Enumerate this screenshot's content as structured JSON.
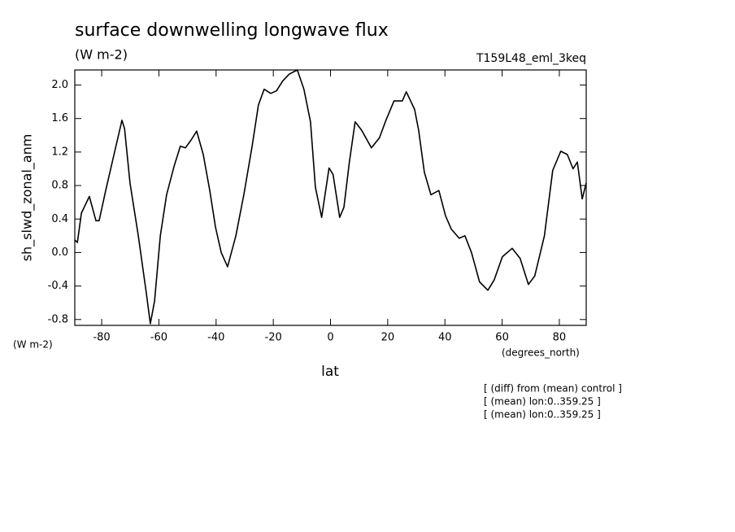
{
  "chart_data": {
    "type": "line",
    "title": "surface downwelling longwave flux",
    "subtitle": "(W m-2)",
    "run_label": "T159L48_eml_3keq",
    "y_label": "sh_slwd_zonal_anm",
    "y_units": "(W m-2)",
    "x_label": "lat",
    "x_units": "(degrees_north)",
    "notes": [
      "[ (diff) from (mean) control ]",
      "[ (mean) lon:0..359.25 ]",
      "[ (mean) lon:0..359.25 ]"
    ],
    "xlim": [
      -89.4,
      89.4
    ],
    "ylim": [
      -0.87,
      2.18
    ],
    "xticks": [
      -80,
      -60,
      -40,
      -20,
      0,
      20,
      40,
      60,
      80
    ],
    "yticks": [
      {
        "value": 2.0,
        "label": "2.0"
      },
      1.6,
      1.2,
      0.8,
      0.4,
      {
        "value": 0.0,
        "label": "0.0"
      },
      -0.4,
      -0.8
    ],
    "series": [
      {
        "color": "#000000",
        "x": [
          -89.4,
          -88.5,
          -87.1,
          -84.3,
          -82.0,
          -80.9,
          -78.6,
          -75.7,
          -72.9,
          -72.0,
          -70.1,
          -67.2,
          -64.4,
          -63.0,
          -61.5,
          -59.5,
          -57.3,
          -54.7,
          -52.5,
          -50.7,
          -48.8,
          -46.8,
          -44.5,
          -42.2,
          -40.2,
          -38.2,
          -36.0,
          -33.1,
          -30.3,
          -27.4,
          -25.2,
          -23.2,
          -20.9,
          -18.9,
          -16.7,
          -14.4,
          -11.6,
          -9.3,
          -7.0,
          -5.3,
          -3.1,
          -0.5,
          0.9,
          3.2,
          4.7,
          6.6,
          8.6,
          10.9,
          14.3,
          17.1,
          19.4,
          22.2,
          25.1,
          26.5,
          29.4,
          30.8,
          32.8,
          35.1,
          37.9,
          40.2,
          42.2,
          45.0,
          47.0,
          49.3,
          52.1,
          55.0,
          57.2,
          60.1,
          63.5,
          66.3,
          69.2,
          71.4,
          74.8,
          77.7,
          80.5,
          82.8,
          84.8,
          86.3,
          88.0,
          89.4
        ],
        "values": [
          0.15,
          0.12,
          0.47,
          0.67,
          0.38,
          0.38,
          0.74,
          1.17,
          1.58,
          1.48,
          0.83,
          0.2,
          -0.48,
          -0.85,
          -0.58,
          0.2,
          0.69,
          1.03,
          1.27,
          1.25,
          1.34,
          1.45,
          1.17,
          0.74,
          0.3,
          0.0,
          -0.17,
          0.2,
          0.69,
          1.27,
          1.76,
          1.95,
          1.9,
          1.93,
          2.05,
          2.13,
          2.18,
          1.95,
          1.56,
          0.78,
          0.42,
          1.01,
          0.93,
          0.42,
          0.54,
          1.08,
          1.56,
          1.46,
          1.25,
          1.37,
          1.58,
          1.81,
          1.81,
          1.92,
          1.71,
          1.46,
          0.96,
          0.69,
          0.74,
          0.44,
          0.28,
          0.17,
          0.2,
          0.0,
          -0.35,
          -0.45,
          -0.33,
          -0.05,
          0.05,
          -0.07,
          -0.38,
          -0.28,
          0.2,
          0.98,
          1.21,
          1.17,
          1.0,
          1.08,
          0.64,
          0.83
        ]
      }
    ]
  }
}
